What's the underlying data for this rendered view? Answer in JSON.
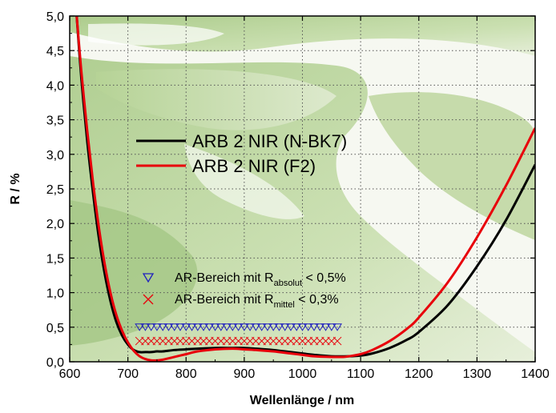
{
  "chart_data": {
    "type": "line",
    "xlabel": "Wellenlänge / nm",
    "ylabel": "R / %",
    "xlim": [
      600,
      1400
    ],
    "ylim": [
      0,
      5
    ],
    "x_ticks": [
      "600",
      "700",
      "800",
      "900",
      "1000",
      "1100",
      "1200",
      "1300",
      "1400"
    ],
    "y_ticks": [
      "0,0",
      "0,5",
      "1,0",
      "1,5",
      "2,0",
      "2,5",
      "3,0",
      "3,5",
      "4,0",
      "4,5",
      "5,0"
    ],
    "grid": true,
    "series": [
      {
        "name": "ARB 2 NIR (N-BK7)",
        "color": "#000000",
        "x": [
          612,
          620,
          630,
          640,
          650,
          660,
          670,
          680,
          690,
          700,
          710,
          720,
          730,
          740,
          750,
          760,
          780,
          800,
          820,
          850,
          880,
          900,
          920,
          950,
          980,
          1000,
          1020,
          1050,
          1080,
          1100,
          1120,
          1150,
          1180,
          1200,
          1250,
          1300,
          1350,
          1400
        ],
        "y": [
          5.0,
          4.1,
          3.2,
          2.45,
          1.8,
          1.28,
          0.88,
          0.58,
          0.38,
          0.25,
          0.17,
          0.14,
          0.14,
          0.14,
          0.15,
          0.15,
          0.17,
          0.18,
          0.19,
          0.2,
          0.2,
          0.2,
          0.19,
          0.17,
          0.14,
          0.12,
          0.1,
          0.08,
          0.08,
          0.09,
          0.12,
          0.2,
          0.32,
          0.43,
          0.82,
          1.38,
          2.05,
          2.85
        ]
      },
      {
        "name": "ARB 2 NIR (F2)",
        "color": "#e8000b",
        "x": [
          612,
          620,
          630,
          640,
          650,
          660,
          670,
          680,
          690,
          700,
          710,
          720,
          730,
          740,
          750,
          760,
          780,
          800,
          820,
          850,
          880,
          900,
          920,
          950,
          980,
          1000,
          1020,
          1050,
          1070,
          1080,
          1100,
          1120,
          1150,
          1180,
          1200,
          1250,
          1300,
          1350,
          1400
        ],
        "y": [
          5.0,
          4.2,
          3.35,
          2.6,
          1.95,
          1.42,
          1.0,
          0.68,
          0.45,
          0.28,
          0.16,
          0.08,
          0.04,
          0.02,
          0.02,
          0.03,
          0.07,
          0.11,
          0.15,
          0.18,
          0.19,
          0.18,
          0.17,
          0.15,
          0.12,
          0.1,
          0.08,
          0.07,
          0.07,
          0.08,
          0.11,
          0.17,
          0.3,
          0.48,
          0.64,
          1.15,
          1.8,
          2.55,
          3.38
        ]
      }
    ],
    "legend": {
      "position": "top-center",
      "entries": [
        "ARB 2 NIR (N-BK7)",
        "ARB 2 NIR (F2)"
      ]
    },
    "ar_ranges": [
      {
        "label_main": "AR-Bereich mit R",
        "label_sub": "absolut",
        "label_tail": " < 0,5%",
        "marker": "triangle-down",
        "color": "#1f1fbf",
        "y": 0.5,
        "x_range": [
          720,
          1060
        ]
      },
      {
        "label_main": "AR-Bereich mit R",
        "label_sub": "mittel",
        "label_tail": " < 0,3%",
        "marker": "x",
        "color": "#e8000b",
        "y": 0.3,
        "x_range": [
          720,
          1060
        ]
      }
    ],
    "background": {
      "theme": "green-leaf"
    }
  }
}
